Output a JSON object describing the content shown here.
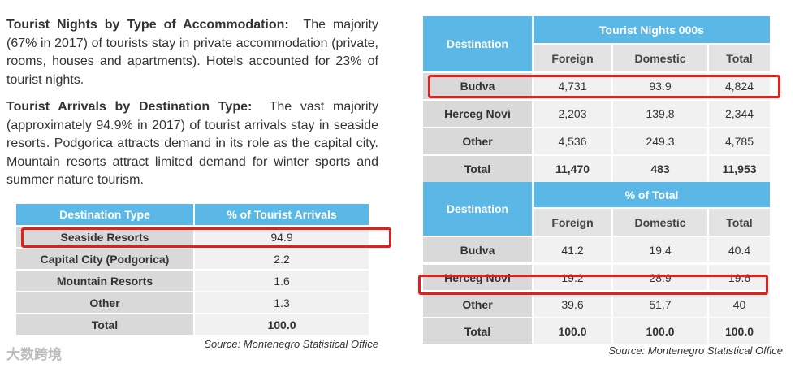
{
  "left": {
    "paragraphs": [
      {
        "heading": "Tourist Nights by Type of Accommodation:",
        "text": "The majority (67% in 2017) of tourists stay in private accommodation (private, rooms, houses and apartments). Hotels accounted for 23% of tourist nights."
      },
      {
        "heading": "Tourist Arrivals by Destination Type:",
        "text": "The vast majority (approximately 94.9% in 2017) of tourist arrivals stay in seaside resorts. Podgorica attracts demand in its role as the capital city. Mountain resorts attract limited demand for winter sports and summer nature tourism."
      }
    ],
    "table": {
      "headers": [
        "Destination Type",
        "% of Tourist Arrivals"
      ],
      "rows": [
        [
          "Seaside Resorts",
          "94.9"
        ],
        [
          "Capital City (Podgorica)",
          "2.2"
        ],
        [
          "Mountain Resorts",
          "1.6"
        ],
        [
          "Other",
          "1.3"
        ],
        [
          "Total",
          "100.0"
        ]
      ]
    },
    "source": "Source: Montenegro Statistical Office"
  },
  "right": {
    "tables": [
      {
        "corner": "Destination",
        "group": "Tourist Nights 000s",
        "columns": [
          "Foreign",
          "Domestic",
          "Total"
        ],
        "rows": [
          [
            "Budva",
            "4,731",
            "93.9",
            "4,824"
          ],
          [
            "Herceg Novi",
            "2,203",
            "139.8",
            "2,344"
          ],
          [
            "Other",
            "4,536",
            "249.3",
            "4,785"
          ],
          [
            "Total",
            "11,470",
            "483",
            "11,953"
          ]
        ]
      },
      {
        "corner": "Destination",
        "group": "% of Total",
        "columns": [
          "Foreign",
          "Domestic",
          "Total"
        ],
        "rows": [
          [
            "Budva",
            "41.2",
            "19.4",
            "40.4"
          ],
          [
            "Herceg Novi",
            "19.2",
            "28.9",
            "19.6"
          ],
          [
            "Other",
            "39.6",
            "51.7",
            "40"
          ],
          [
            "Total",
            "100.0",
            "100.0",
            "100.0"
          ]
        ]
      }
    ],
    "source": "Source: Montenegro Statistical Office"
  },
  "watermark": "大数跨境"
}
